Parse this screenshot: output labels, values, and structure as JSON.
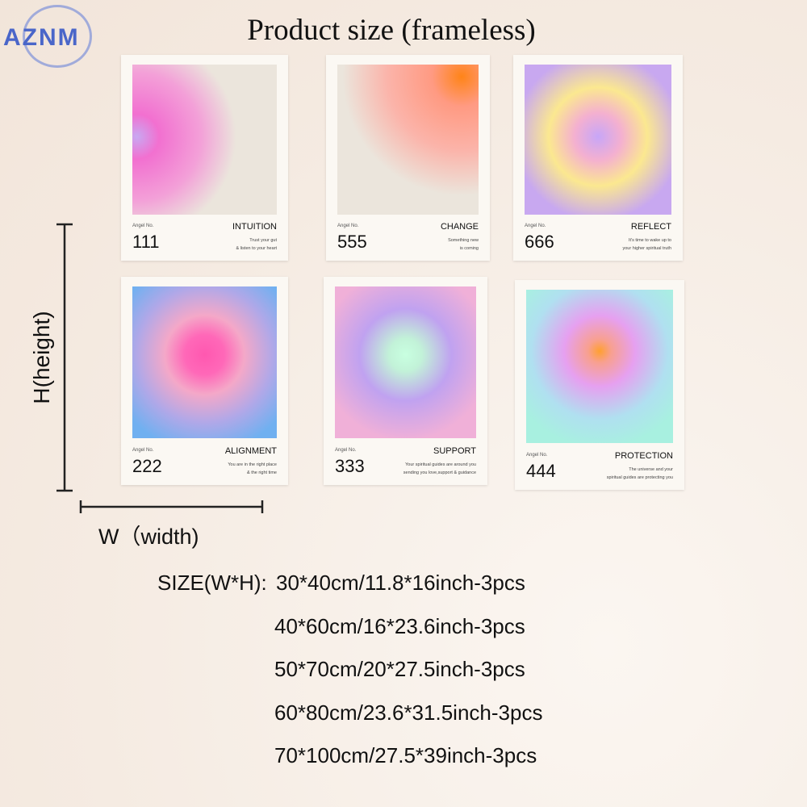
{
  "logo": "AZNM",
  "title": "Product size (frameless)",
  "posters": [
    {
      "label": "Angel No.",
      "number": "111",
      "word": "INTUITION",
      "lines": [
        "Trust your gut",
        "& listen to your heart"
      ]
    },
    {
      "label": "Angel No.",
      "number": "555",
      "word": "CHANGE",
      "lines": [
        "Something new",
        "is coming"
      ]
    },
    {
      "label": "Angel No.",
      "number": "666",
      "word": "REFLECT",
      "lines": [
        "It's time to wake up to",
        "your higher spiritual truth"
      ]
    },
    {
      "label": "Angel No.",
      "number": "222",
      "word": "ALIGNMENT",
      "lines": [
        "You are in the right place",
        "& the right time"
      ]
    },
    {
      "label": "Angel No.",
      "number": "333",
      "word": "SUPPORT",
      "lines": [
        "Your spiritual guides are around you",
        "sending you love,support & guidance"
      ]
    },
    {
      "label": "Angel No.",
      "number": "444",
      "word": "PROTECTION",
      "lines": [
        "The universe and your",
        "spiritual guides are protecting you"
      ]
    }
  ],
  "height_label": "H(height)",
  "width_label": "W（width)",
  "size_prefix": "SIZE(W*H):",
  "sizes": [
    "30*40cm/11.8*16inch-3pcs",
    "40*60cm/16*23.6inch-3pcs",
    "50*70cm/20*27.5inch-3pcs",
    "60*80cm/23.6*31.5inch-3pcs",
    "70*100cm/27.5*39inch-3pcs"
  ]
}
